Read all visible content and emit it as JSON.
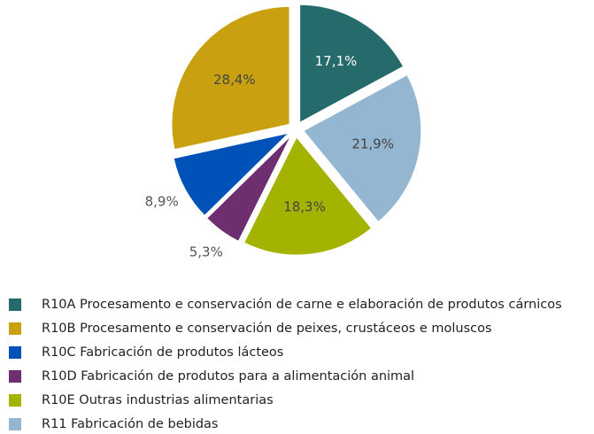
{
  "chart_data": {
    "type": "pie",
    "categories": [
      "R10A Procesamento e conservación de carne e elaboración de produtos cárnicos",
      "R10B Procesamento e conservación de peixes, crustáceos e moluscos",
      "R10C Fabricación de produtos lácteos",
      "R10D Fabricación de produtos para a alimentación animal",
      "R10E Outras industrias alimentarias",
      "R11 Fabricación de bebidas"
    ],
    "values": [
      17.1,
      28.4,
      8.9,
      5.3,
      18.3,
      21.9
    ],
    "value_labels": [
      "17,1%",
      "28,4%",
      "8,9%",
      "5,3%",
      "18,3%",
      "21,9%"
    ],
    "colors": [
      "#266b6b",
      "#c9a010",
      "#0052b8",
      "#6e2f70",
      "#a4b300",
      "#94b6d0"
    ],
    "legend": "bottom"
  }
}
